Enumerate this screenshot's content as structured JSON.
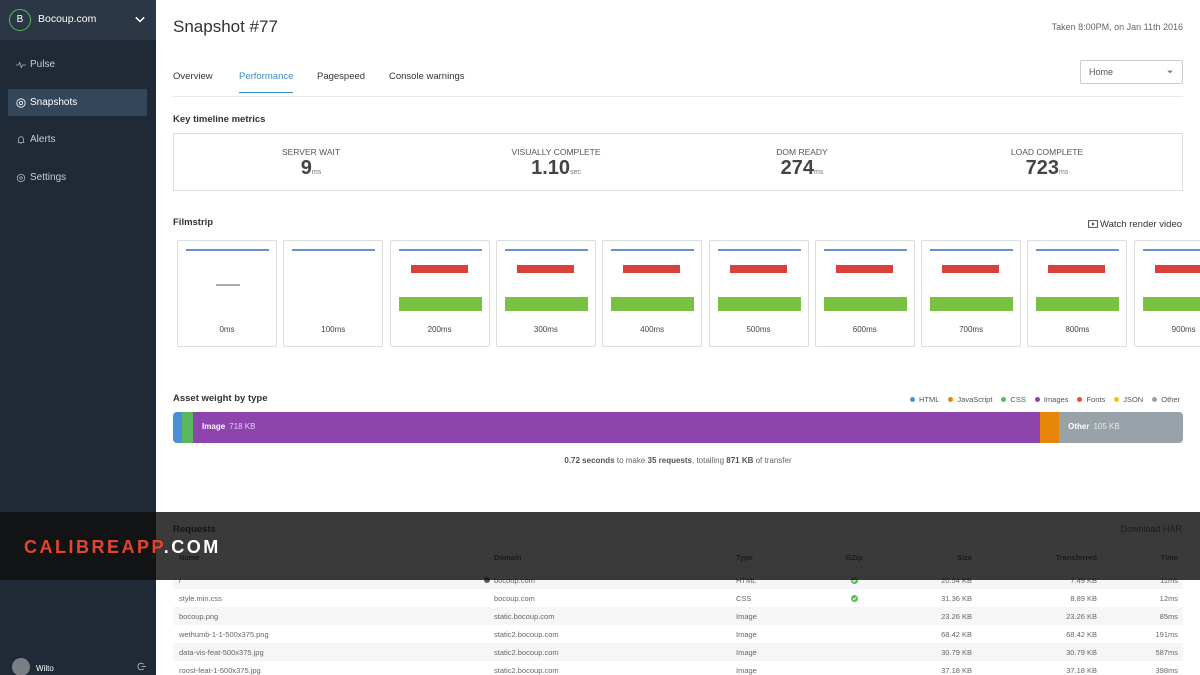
{
  "sidebar": {
    "org_initial": "B",
    "org": "Bocoup.com",
    "nav": [
      "Pulse",
      "Snapshots",
      "Alerts",
      "Settings"
    ],
    "active": 1,
    "user": "Wilto"
  },
  "header": {
    "title": "Snapshot #77",
    "taken": "Taken 8:00PM, on Jan 11th 2016"
  },
  "tabs": {
    "items": [
      "Overview",
      "Performance",
      "Pagespeed",
      "Console warnings"
    ],
    "active": 1,
    "select": "Home"
  },
  "metrics": {
    "title": "Key timeline metrics",
    "items": [
      {
        "label": "SERVER WAIT",
        "value": "9",
        "unit": "ms"
      },
      {
        "label": "VISUALLY COMPLETE",
        "value": "1.10",
        "unit": "sec"
      },
      {
        "label": "DOM READY",
        "value": "274",
        "unit": "ms"
      },
      {
        "label": "LOAD COMPLETE",
        "value": "723",
        "unit": "ms"
      }
    ]
  },
  "filmstrip": {
    "title": "Filmstrip",
    "action": "Watch render video",
    "frames": [
      "0ms",
      "100ms",
      "200ms",
      "300ms",
      "400ms",
      "500ms",
      "600ms",
      "700ms",
      "800ms",
      "900ms"
    ]
  },
  "assets": {
    "title": "Asset weight by type",
    "legend": [
      {
        "name": "HTML",
        "color": "#4a90d9"
      },
      {
        "name": "JavaScript",
        "color": "#e8860c"
      },
      {
        "name": "CSS",
        "color": "#5cb85c"
      },
      {
        "name": "Images",
        "color": "#8e44ad"
      },
      {
        "name": "Fonts",
        "color": "#e74c3c"
      },
      {
        "name": "JSON",
        "color": "#f1c40f"
      },
      {
        "name": "Other",
        "color": "#98a2a8"
      }
    ],
    "segments": [
      {
        "value": 8,
        "color": "#4a90d9"
      },
      {
        "value": 9,
        "color": "#5cb85c"
      },
      {
        "label": "Image",
        "value": 718,
        "value_label": "718 KB",
        "color": "#8e44ad"
      },
      {
        "value": 16,
        "color": "#e8860c"
      },
      {
        "label": "Other",
        "value": 105,
        "value_label": "105 KB",
        "color": "#98a2a8"
      }
    ],
    "summary": [
      {
        "text": "0.72 seconds",
        "bold": true
      },
      {
        "text": " to make ",
        "bold": false
      },
      {
        "text": "35 requests",
        "bold": true
      },
      {
        "text": ", totalling ",
        "bold": false
      },
      {
        "text": "871 KB",
        "bold": true
      },
      {
        "text": " of transfer",
        "bold": false
      }
    ]
  },
  "requests": {
    "title": "Requests",
    "action": "Download HAR",
    "columns": [
      "Name",
      "Domain",
      "Type",
      "GZip",
      "Size",
      "Transferred",
      "Time"
    ],
    "rows": [
      {
        "name": "/",
        "domain": "bocoup.com",
        "type": "HTML",
        "gzip": true,
        "size": "20.54 KB",
        "transferred": "7.49 KB",
        "time": "11ms"
      },
      {
        "name": "style.min.css",
        "domain": "bocoup.com",
        "type": "CSS",
        "gzip": true,
        "size": "31.36 KB",
        "transferred": "8.89 KB",
        "time": "12ms"
      },
      {
        "name": "bocoup.png",
        "domain": "static.bocoup.com",
        "type": "Image",
        "gzip": false,
        "size": "23.26 KB",
        "transferred": "23.26 KB",
        "time": "85ms"
      },
      {
        "name": "wethumb-1-1-500x375.png",
        "domain": "static2.bocoup.com",
        "type": "Image",
        "gzip": false,
        "size": "68.42 KB",
        "transferred": "68.42 KB",
        "time": "191ms"
      },
      {
        "name": "data-vis-feat-500x375.jpg",
        "domain": "static2.bocoup.com",
        "type": "Image",
        "gzip": false,
        "size": "30.79 KB",
        "transferred": "30.79 KB",
        "time": "587ms"
      },
      {
        "name": "roost-feat-1-500x375.jpg",
        "domain": "static2.bocoup.com",
        "type": "Image",
        "gzip": false,
        "size": "37.18 KB",
        "transferred": "37.18 KB",
        "time": "398ms"
      }
    ]
  },
  "banner": {
    "brand": "CALIBREAPP",
    "tld": ".COM"
  }
}
